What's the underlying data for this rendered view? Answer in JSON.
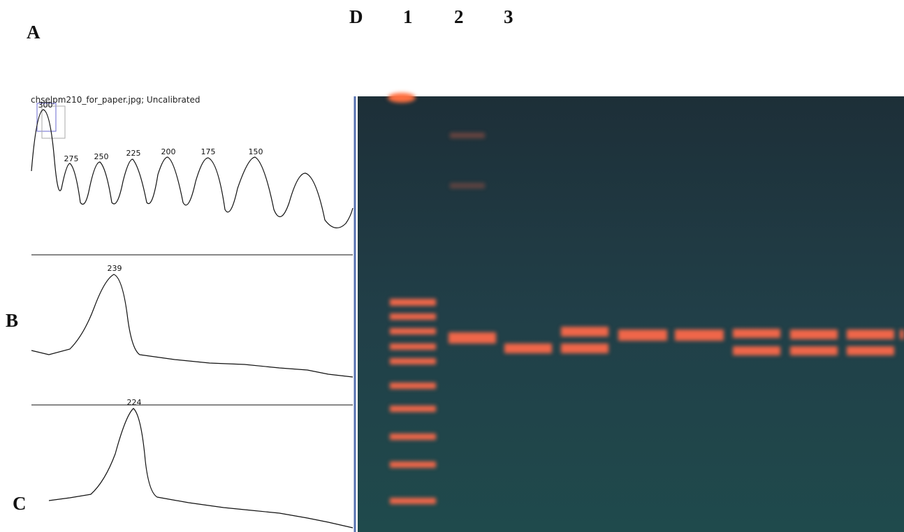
{
  "panel_labels": [
    "A",
    "B",
    "C"
  ],
  "lane_labels": [
    "D",
    "1",
    "2",
    "3"
  ],
  "caption": "chselpm210_for_paper.jpg; Uncalibrated",
  "peaks_a": [
    300,
    275,
    250,
    225,
    200,
    175,
    150
  ],
  "peak_b": 239,
  "peak_c": 224
}
